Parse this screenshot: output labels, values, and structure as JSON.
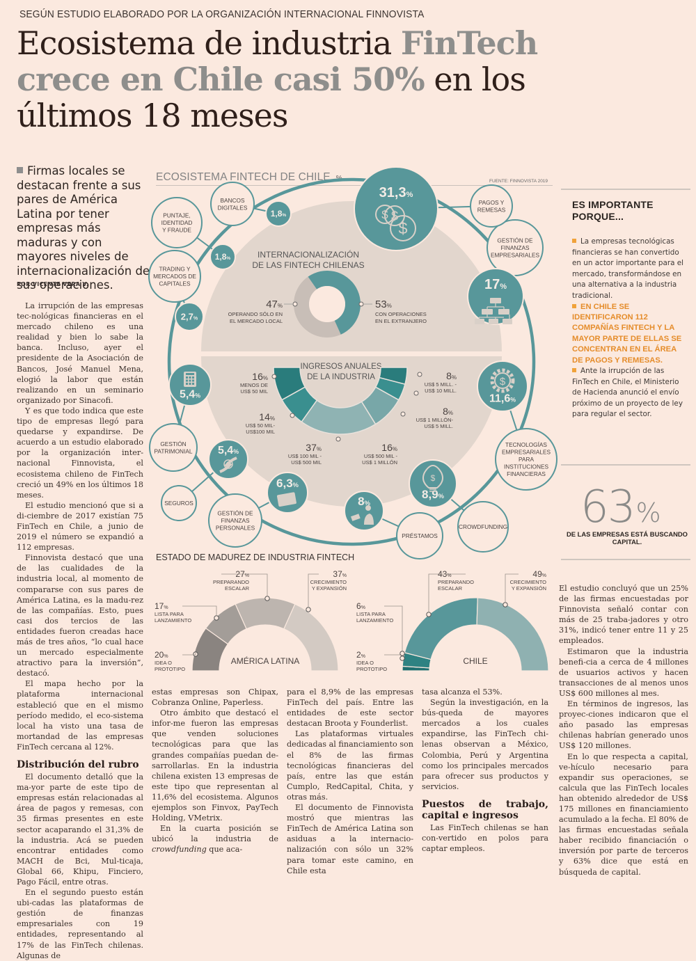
{
  "kicker": "SEGÚN ESTUDIO ELABORADO POR LA ORGANIZACIÓN INTERNACIONAL FINNOVISTA",
  "headline": {
    "part1": "Ecosistema de industria ",
    "part2_highlight": "FinTech crece en Chile casi 50%",
    "part3": " en los últimos 18 meses"
  },
  "lede": "Firmas locales se destacan frente a sus pares de América Latina por tener empresas más maduras y con mayores niveles de internacionalización de sus operaciones.",
  "byline": "POR VICENTE VERA V.",
  "article": {
    "col1": [
      "La irrupción de las empresas tec-nológicas financieras en el mercado chileno es una realidad y bien lo sabe la banca. Incluso, ayer el presidente de la Asociación de Bancos, José Manuel Mena, elogió la labor que están realizando en un seminario organizado por Sinacofi.",
      "Y es que todo indica que este tipo de empresas llegó para quedarse y expandirse. De acuerdo a un estudio elaborado por la organización inter-nacional Finnovista, el ecosistema chileno de FinTech creció un 49% en los últimos 18 meses.",
      "El estudio mencionó que si a di-ciembre de 2017 existían 75 FinTech en Chile, a junio de 2019 el número se expandió a 112 empresas.",
      "Finnovista destacó que una de las cualidades de la industria local, al momento de compararse con sus pares de América Latina, es la madu-rez de las compañías. Esto, pues casi dos tercios de las entidades fueron creadas hace más de tres años, “lo cual hace un mercado especialmente atractivo para la inversión”, destacó.",
      "El mapa hecho por la plataforma internacional estableció que en el mismo período medido, el eco-sistema local ha visto una tasa de mortandad de las empresas FinTech cercana al 12%."
    ],
    "subhead1": "Distribución del rubro",
    "col1b": [
      "El documento detalló que la ma-yor parte de este tipo de empresas están relacionadas al área de pagos y remesas, con 35 firmas presentes en este sector acaparando el 31,3% de la industria. Acá se pueden encontrar entidades como MACH de Bci, Mul-ticaja, Global 66, Khipu, Finciero, Pago Fácil, entre otras.",
      "En el segundo puesto están ubi-cadas las plataformas de gestión de finanzas empresariales con 19 entidades, representando al 17% de las FinTech chilenas. Algunas de"
    ],
    "col2": [
      "estas empresas son Chipax, Cobranza Online, Paperless.",
      "Otro ámbito que destacó el infor-me fueron las empresas que venden soluciones tecnológicas para que las grandes compañías puedan de-sarrollarlas. En la industria chilena existen 13 empresas de este tipo que representan al 11,6% del ecosistema. Algunos ejemplos son Finvox, PayTech Holding, VMetrix.",
      "En la cuarta posición se ubicó la industria de crowdfunding que aca-"
    ],
    "col3": [
      "para el 8,9% de las empresas FinTech del país. Entre las entidades de este sector destacan Broota y Founderlist.",
      "Las plataformas virtuales dedicadas al financiamiento son el 8% de las firmas tecnológicas financieras del país, entre las que están Cumplo, RedCapital, Chita, y otras más.",
      "El documento de Finnovista mostró que mientras las FinTech de América Latina son asiduas a la internacio-nalización con sólo un 32% para tomar este camino, en Chile esta"
    ],
    "col4": [
      "tasa alcanza el 53%.",
      "Según la investigación, en la bús-queda de mayores mercados a los cuales expandirse, las FinTech chi-lenas observan a México, Colombia, Perú y Argentina como los principales mercados para ofrecer sus productos y servicios."
    ],
    "subhead2": "Puestos de trabajo, capital e ingresos",
    "col4b": [
      "Las FinTech chilenas se han con-vertido en polos para captar empleos."
    ],
    "col5": [
      "El estudio concluyó que un 25% de las firmas encuestadas por Finnovista señaló contar con más de 25 traba-jadores y otro 31%, indicó tener entre 11 y 25 empleados.",
      "Estimaron que la industria benefi-cia a cerca de 4 millones de usuarios activos y hacen transacciones de al menos unos US$ 600 millones al mes.",
      "En términos de ingresos, las proyec-ciones indicaron que el año pasado las empresas chilenas habrían generado unos US$ 120 millones.",
      "En lo que respecta a capital, ve-hículo necesario para expandir sus operaciones, se calcula que las FinTech locales han obtenido alrededor de US$ 175 millones en financiamiento acumulado a la fecha. El 80% de las firmas encuestadas señala haber recibido financiación o inversión por parte de terceros y 63% dice que está en búsqueda de capital."
    ]
  },
  "infographic": {
    "title": "ECOSISTEMA FINTECH DE CHILE",
    "unit": "%",
    "source": "FUENTE: FINNOVISTA 2019",
    "colors": {
      "teal": "#58979a",
      "teal_dark": "#2a7c7c",
      "teal_mid": "#3a8f8f",
      "teal_light": "#8fb3b3",
      "beige": "#e0d4cb",
      "grey_ring": "#c9c1bb"
    },
    "segments": [
      {
        "label": "BANCOS DIGITALES",
        "value": "1,8",
        "icon": "none"
      },
      {
        "label": "PUNTAJE, IDENTIDAD Y FRAUDE",
        "value": "1,8",
        "icon": "none"
      },
      {
        "label": "TRADING Y MERCADOS DE CAPITALES",
        "value": "2,7",
        "icon": "none"
      },
      {
        "label": "GESTIÓN PATRIMONIAL",
        "value": "5,4",
        "icon": "calculator-icon"
      },
      {
        "label": "SEGUROS",
        "value": "5,4",
        "icon": "hands-money-icon"
      },
      {
        "label": "GESTIÓN DE FINANZAS PERSONALES",
        "value": "6,3",
        "icon": "wallet-icon"
      },
      {
        "label": "PRÉSTAMOS",
        "value": "8",
        "icon": "person-money-icon"
      },
      {
        "label": "CROWDFUNDING",
        "value": "8,9",
        "icon": "lightbulb-dollar-icon"
      },
      {
        "label": "TECNOLOGÍAS EMPRESARIALES PARA INSTITUCIONES FINANCIERAS",
        "value": "11,6",
        "icon": "gear-dollar-icon"
      },
      {
        "label": "GESTIÓN DE FINANZAS EMPRESARIALES",
        "value": "17",
        "icon": "org-chart-icon"
      },
      {
        "label": "PAGOS Y REMESAS",
        "value": "31,3",
        "icon": "coins-icon"
      }
    ],
    "internacionalizacion": {
      "title_l1": "INTERNACIONALIZACIÓN",
      "title_l2": "DE LAS FINTECH CHILENAS",
      "items": [
        {
          "value": "47",
          "label_l1": "OPERANDO SÓLO EN",
          "label_l2": "EL MERCADO LOCAL"
        },
        {
          "value": "53",
          "label_l1": "CON OPERACIONES",
          "label_l2": "EN EL EXTRANJERO"
        }
      ]
    },
    "ingresos": {
      "title_l1": "INGRESOS ANUALES",
      "title_l2": "DE LA INDUSTRIA",
      "items": [
        {
          "value": "16",
          "label_l1": "MENOS DE",
          "label_l2": "US$ 50 MIL"
        },
        {
          "value": "14",
          "label_l1": "US$ 50 MIL-",
          "label_l2": "US$100 MIL"
        },
        {
          "value": "37",
          "label_l1": "US$ 100 MIL -",
          "label_l2": "US$ 500 MIL"
        },
        {
          "value": "16",
          "label_l1": "US$ 500 MIL -",
          "label_l2": "US$ 1 MILLÓN"
        },
        {
          "value": "8",
          "label_l1": "US$ 1 MILLÓN-",
          "label_l2": "US$ 5 MILL."
        },
        {
          "value": "8",
          "label_l1": "US$ 5 MILL. -",
          "label_l2": "US$ 10 MILL."
        }
      ]
    }
  },
  "madurez": {
    "title": "ESTADO DE MADUREZ DE INDUSTRIA FINTECH",
    "charts": [
      {
        "name": "AMÉRICA LATINA",
        "items": [
          {
            "value": "20",
            "label_l1": "IDEA O",
            "label_l2": "PROTOTIPO"
          },
          {
            "value": "17",
            "label_l1": "LISTA PARA",
            "label_l2": "LANZAMIENTO"
          },
          {
            "value": "27",
            "label_l1": "PREPARANDO",
            "label_l2": "ESCALAR"
          },
          {
            "value": "37",
            "label_l1": "CRECIMIENTO",
            "label_l2": "Y EXPANSIÓN"
          }
        ]
      },
      {
        "name": "CHILE",
        "items": [
          {
            "value": "2",
            "label_l1": "IDEA O",
            "label_l2": "PROTOTIPO"
          },
          {
            "value": "6",
            "label_l1": "LISTA PARA",
            "label_l2": "LANZAMIENTO"
          },
          {
            "value": "43",
            "label_l1": "PREPARANDO",
            "label_l2": "ESCALAR"
          },
          {
            "value": "49",
            "label_l1": "CRECIMIENTO",
            "label_l2": "Y EXPANSIÓN"
          }
        ]
      }
    ]
  },
  "sidebar": {
    "title_l1": "ES IMPORTANTE",
    "title_l2": "PORQUE...",
    "items": [
      {
        "text": "La empresas tecnológicas financieras se han convertido en un actor importante para el mercado, transformándose en una alternativa a la industria tradicional.",
        "style": "normal"
      },
      {
        "text": "EN CHILE SE IDENTIFICARON 112 COMPAÑÍAS FINTECH Y LA MAYOR PARTE DE ELLAS SE CONCENTRAN EN EL ÁREA DE PAGOS Y REMESAS.",
        "style": "orange"
      },
      {
        "text": "Ante la irrupción de las FinTech en Chile, el Ministerio de Hacienda anunció el envío próximo de un proyecto de ley para regular el sector.",
        "style": "normal"
      }
    ],
    "stat_value": "63",
    "stat_unit": "%",
    "stat_caption": "DE LAS EMPRESAS ESTÁ BUSCANDO CAPITAL."
  }
}
